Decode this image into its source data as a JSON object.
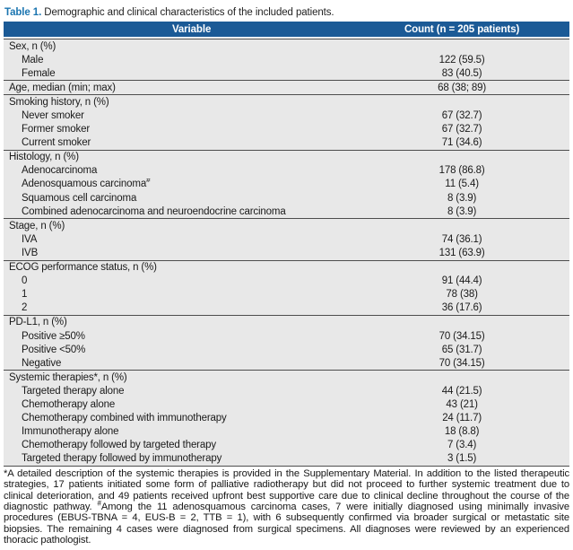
{
  "colors": {
    "accent": "#1b75b0",
    "header_bg": "#1b5a96",
    "row_bg": "#e8e8e8",
    "rule": "#4d4d4d",
    "header_text": "#ffffff"
  },
  "caption": {
    "label": "Table 1.",
    "text": "Demographic and clinical characteristics of the included patients."
  },
  "table": {
    "columns": [
      "Variable",
      "Count (n = 205 patients)"
    ],
    "rows": [
      {
        "label": "Sex, n (%)",
        "value": "",
        "group": true
      },
      {
        "label": "Male",
        "value": "122 (59.5)",
        "group": false
      },
      {
        "label": "Female",
        "value": "83 (40.5)",
        "group": false
      },
      {
        "label": "Age, median (min; max)",
        "value": "68 (38; 89)",
        "group": true
      },
      {
        "label": "Smoking history, n (%)",
        "value": "",
        "group": true
      },
      {
        "label": "Never smoker",
        "value": "67 (32.7)",
        "group": false
      },
      {
        "label": "Former smoker",
        "value": "67 (32.7)",
        "group": false
      },
      {
        "label": "Current smoker",
        "value": "71 (34.6)",
        "group": false
      },
      {
        "label": "Histology, n (%)",
        "value": "",
        "group": true
      },
      {
        "label": "Adenocarcinoma",
        "value": "178 (86.8)",
        "group": false
      },
      {
        "label": "Adenosquamous carcinoma",
        "sup": "#",
        "value": "11 (5.4)",
        "group": false
      },
      {
        "label": "Squamous cell carcinoma",
        "value": "8 (3.9)",
        "group": false
      },
      {
        "label": "Combined adenocarcinoma and neuroendocrine carcinoma",
        "value": "8 (3.9)",
        "group": false
      },
      {
        "label": "Stage, n (%)",
        "value": "",
        "group": true
      },
      {
        "label": "IVA",
        "value": "74 (36.1)",
        "group": false
      },
      {
        "label": "IVB",
        "value": "131 (63.9)",
        "group": false
      },
      {
        "label": "ECOG performance status, n (%)",
        "value": "",
        "group": true
      },
      {
        "label": "0",
        "value": "91 (44.4)",
        "group": false
      },
      {
        "label": "1",
        "value": "78 (38)",
        "group": false
      },
      {
        "label": "2",
        "value": "36 (17.6)",
        "group": false
      },
      {
        "label": "PD-L1, n (%)",
        "value": "",
        "group": true
      },
      {
        "label": "Positive ≥50%",
        "value": "70 (34.15)",
        "group": false
      },
      {
        "label": "Positive <50%",
        "value": "65 (31.7)",
        "group": false
      },
      {
        "label": "Negative",
        "value": "70 (34.15)",
        "group": false
      },
      {
        "label": "Systemic therapies*, n (%)",
        "value": "",
        "group": true
      },
      {
        "label": "Targeted therapy alone",
        "value": "44 (21.5)",
        "group": false
      },
      {
        "label": "Chemotherapy alone",
        "value": "43 (21)",
        "group": false
      },
      {
        "label": "Chemotherapy combined with immunotherapy",
        "value": "24 (11.7)",
        "group": false
      },
      {
        "label": "Immunotherapy alone",
        "value": "18 (8.8)",
        "group": false
      },
      {
        "label": "Chemotherapy followed by targeted therapy",
        "value": "7 (3.4)",
        "group": false
      },
      {
        "label": "Targeted therapy followed by immunotherapy",
        "value": "3 (1.5)",
        "group": false
      }
    ]
  },
  "footnote": {
    "segments": [
      {
        "text": "*A detailed description of the systemic therapies is provided in the Supplementary Material. In addition to the listed therapeutic strategies, 17 patients initiated some form of palliative radiotherapy but did not proceed to further systemic treatment due to clinical deterioration, and 49 patients received upfront best supportive care due to clinical decline throughout the course of the diagnostic pathway. "
      },
      {
        "sup": "#"
      },
      {
        "text": "Among the 11 adenosquamous carcinoma cases, 7 were initially diagnosed using minimally invasive procedures (EBUS-TBNA = 4, EUS-B = 2, TTB = 1), with 6 subsequently confirmed via broader surgical or metastatic site biopsies. The remaining 4 cases were diagnosed from surgical specimens. All diagnoses were reviewed by an experienced thoracic pathologist."
      }
    ]
  }
}
